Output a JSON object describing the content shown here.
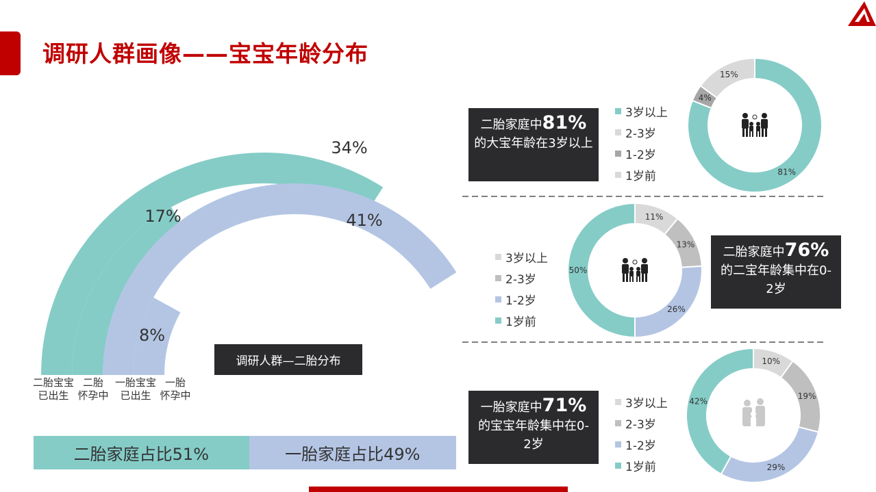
{
  "page": {
    "title": "调研人群画像——宝宝年龄分布",
    "center_label": "调研人群—二胎分布"
  },
  "colors": {
    "teal": "#85ccc7",
    "lavender": "#b4c5e4",
    "grey_light": "#d9d9d9",
    "grey_mid": "#bfbfbf",
    "grey_dark": "#a6a6a6",
    "red": "#c00000"
  },
  "chart_data": [
    {
      "type": "bar",
      "subtype": "radial-arc",
      "categories": [
        "二胎宝宝已出生",
        "二胎怀孕中",
        "一胎宝宝已出生",
        "一胎怀孕中"
      ],
      "category_lines": [
        [
          "二胎宝宝",
          "已出生"
        ],
        [
          "二胎",
          "怀孕中"
        ],
        [
          "一胎宝宝",
          "已出生"
        ],
        [
          "一胎",
          "怀孕中"
        ]
      ],
      "values": [
        34,
        17,
        41,
        8
      ],
      "value_labels": [
        "34%",
        "17%",
        "41%",
        "8%"
      ],
      "colors": [
        "#85ccc7",
        "#85ccc7",
        "#b4c5e4",
        "#b4c5e4"
      ],
      "title": ""
    },
    {
      "type": "bar",
      "subtype": "stacked-100",
      "series": [
        {
          "name": "二胎家庭占比51%",
          "values": [
            51
          ]
        },
        {
          "name": "一胎家庭占比49%",
          "values": [
            49
          ]
        }
      ]
    },
    {
      "type": "pie",
      "subtype": "donut",
      "legend": [
        "3岁以上",
        "2-3岁",
        "1-2岁",
        "1岁前"
      ],
      "values": [
        81,
        0,
        4,
        15
      ],
      "slices": [
        {
          "label": "81%",
          "value": 81,
          "color": "#85ccc7"
        },
        {
          "label": "4%",
          "value": 4,
          "color": "#a6a6a6"
        },
        {
          "label": "15%",
          "value": 15,
          "color": "#d9d9d9"
        }
      ],
      "callout": {
        "line1": "二胎家庭中",
        "highlight": "81%",
        "line2": "的大宝年龄在3岁以上"
      }
    },
    {
      "type": "pie",
      "subtype": "donut",
      "legend": [
        "3岁以上",
        "2-3岁",
        "1-2岁",
        "1岁前"
      ],
      "slices": [
        {
          "label": "11%",
          "value": 11,
          "color": "#d9d9d9"
        },
        {
          "label": "13%",
          "value": 13,
          "color": "#bfbfbf"
        },
        {
          "label": "26%",
          "value": 26,
          "color": "#b4c5e4"
        },
        {
          "label": "50%",
          "value": 50,
          "color": "#85ccc7"
        }
      ],
      "callout": {
        "line1": "二胎家庭中",
        "highlight": "76%",
        "line2": "的二宝年龄集中在0-2岁"
      }
    },
    {
      "type": "pie",
      "subtype": "donut",
      "legend": [
        "3岁以上",
        "2-3岁",
        "1-2岁",
        "1岁前"
      ],
      "slices": [
        {
          "label": "10%",
          "value": 10,
          "color": "#d9d9d9"
        },
        {
          "label": "19%",
          "value": 19,
          "color": "#bfbfbf"
        },
        {
          "label": "29%",
          "value": 29,
          "color": "#b4c5e4"
        },
        {
          "label": "42%",
          "value": 42,
          "color": "#85ccc7"
        }
      ],
      "callout": {
        "line1": "一胎家庭中",
        "highlight": "71%",
        "line2": "的宝宝年龄集中在0-2岁"
      }
    }
  ],
  "legend_colors": [
    "#d9d9d9",
    "#bfbfbf",
    "#b4c5e4",
    "#85ccc7"
  ],
  "legend_colors_first": [
    "#85ccc7",
    "#d9d9d9",
    "#a6a6a6",
    "#d9d9d9"
  ],
  "icons": [
    "family-of-four-icon",
    "family-of-four-icon",
    "parents-with-child-icon"
  ]
}
